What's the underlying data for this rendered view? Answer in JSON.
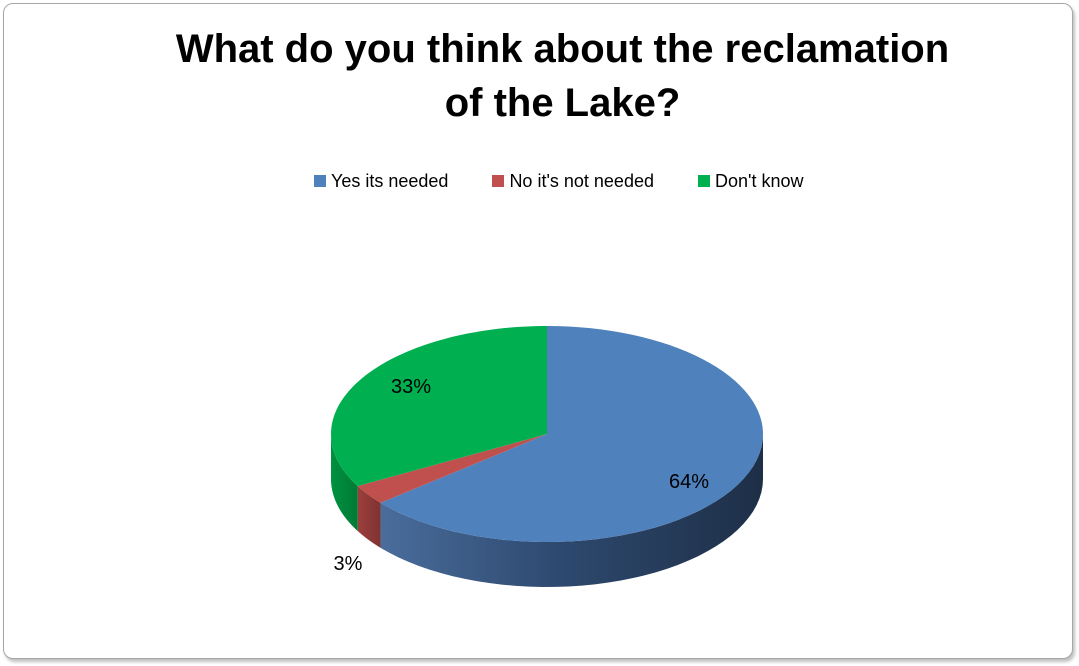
{
  "chart_data": {
    "type": "pie",
    "title_lines": [
      "What do you think about the reclamation",
      "of the Lake?"
    ],
    "legend_position": "top",
    "categories": [
      "Yes its needed",
      "No it's not needed",
      "Don't know"
    ],
    "values": [
      64,
      3,
      33
    ],
    "data_labels": [
      "64%",
      "3%",
      "33%"
    ],
    "colors": [
      "#4F81BD",
      "#C0504D",
      "#00B050"
    ],
    "style": "3d"
  }
}
